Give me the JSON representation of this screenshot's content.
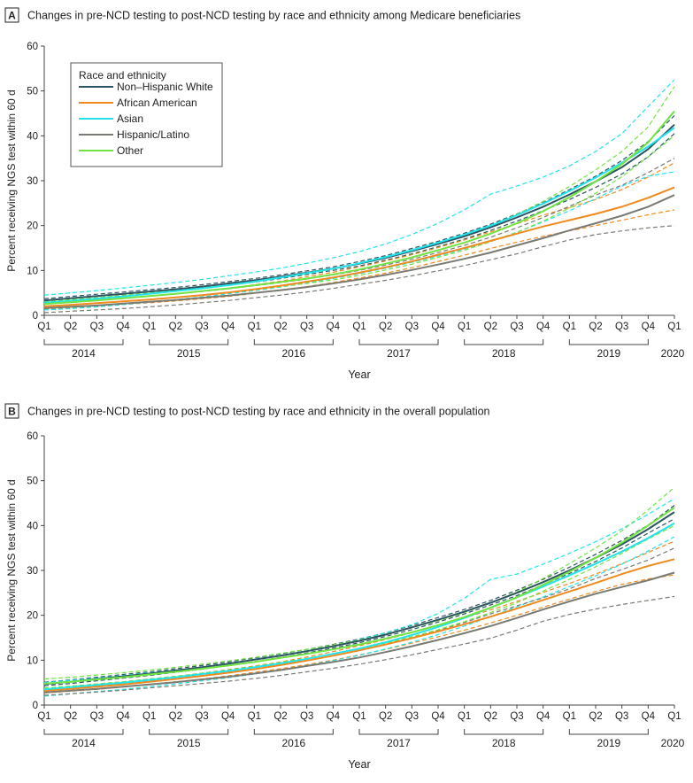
{
  "colors": {
    "Non-Hispanic White": "#2d5560",
    "African American": "#ef8a1f",
    "Asian": "#22e3ea",
    "Hispanic/Latino": "#7a7a73",
    "Other": "#71e343",
    "axis": "#444444",
    "text": "#222222"
  },
  "chart_data": [
    {
      "type": "line",
      "panel_label": "A",
      "title": "Changes in pre-NCD testing to post-NCD testing by race and ethnicity among Medicare beneficiaries",
      "xlabel": "Year",
      "ylabel": "Percent receiving NGS test within 60 d",
      "ylim": [
        0,
        60
      ],
      "yticks": [
        0,
        10,
        20,
        30,
        40,
        50,
        60
      ],
      "x_quarters": [
        "Q1",
        "Q2",
        "Q3",
        "Q4",
        "Q1",
        "Q2",
        "Q3",
        "Q4",
        "Q1",
        "Q2",
        "Q3",
        "Q4",
        "Q1",
        "Q2",
        "Q3",
        "Q4",
        "Q1",
        "Q2",
        "Q3",
        "Q4",
        "Q1",
        "Q2",
        "Q3",
        "Q4",
        "Q1"
      ],
      "year_groups": [
        "2014",
        "2015",
        "2016",
        "2017",
        "2018",
        "2019",
        "2020"
      ],
      "legend": {
        "title": "Race and ethnicity",
        "position": "top-left"
      },
      "series": [
        {
          "name": "Non–Hispanic White",
          "key": "Non-Hispanic White",
          "values": [
            3.3,
            3.8,
            4.3,
            4.8,
            5.3,
            5.8,
            6.4,
            7.1,
            7.8,
            8.6,
            9.5,
            10.4,
            11.5,
            12.8,
            14.3,
            15.9,
            17.6,
            19.6,
            21.8,
            24.2,
            26.9,
            29.8,
            33.0,
            37.0,
            42.5
          ],
          "lower": [
            2.9,
            3.4,
            3.9,
            4.4,
            4.9,
            5.4,
            6.0,
            6.7,
            7.4,
            8.2,
            9.1,
            10.0,
            11.0,
            12.3,
            13.7,
            15.3,
            17.0,
            18.9,
            21.0,
            23.3,
            25.8,
            28.5,
            31.5,
            35.3,
            40.5
          ],
          "upper": [
            3.7,
            4.2,
            4.7,
            5.2,
            5.7,
            6.2,
            6.8,
            7.5,
            8.2,
            9.0,
            9.9,
            10.8,
            12.0,
            13.3,
            14.9,
            16.5,
            18.3,
            20.3,
            22.6,
            25.1,
            28.0,
            31.0,
            34.5,
            38.7,
            44.5
          ]
        },
        {
          "name": "African American",
          "key": "African American",
          "values": [
            2.0,
            2.3,
            2.7,
            3.1,
            3.5,
            4.0,
            4.5,
            5.1,
            5.8,
            6.6,
            7.5,
            8.4,
            9.5,
            10.7,
            12.0,
            13.5,
            15.0,
            16.6,
            18.2,
            19.8,
            21.2,
            22.6,
            24.2,
            26.2,
            28.5
          ],
          "lower": [
            1.4,
            1.6,
            2.0,
            2.4,
            2.8,
            3.2,
            3.7,
            4.2,
            4.9,
            5.6,
            6.4,
            7.3,
            8.3,
            9.4,
            10.6,
            12.0,
            13.4,
            14.9,
            16.3,
            17.6,
            18.8,
            20.0,
            21.2,
            22.4,
            23.5
          ],
          "upper": [
            2.6,
            3.0,
            3.4,
            3.8,
            4.3,
            4.8,
            5.4,
            6.0,
            6.8,
            7.6,
            8.6,
            9.6,
            10.8,
            12.1,
            13.5,
            15.1,
            16.8,
            18.6,
            20.4,
            22.3,
            24.0,
            25.8,
            28.0,
            30.8,
            34.0
          ]
        },
        {
          "name": "Asian",
          "key": "Asian",
          "values": [
            2.8,
            3.2,
            3.7,
            4.2,
            4.8,
            5.4,
            6.0,
            6.7,
            7.5,
            8.4,
            9.4,
            10.4,
            11.6,
            13.0,
            14.5,
            16.2,
            18.0,
            20.0,
            22.3,
            24.9,
            27.7,
            30.7,
            34.0,
            37.6,
            41.8
          ],
          "lower": [
            1.2,
            1.5,
            1.9,
            2.4,
            2.9,
            3.5,
            4.1,
            4.8,
            5.5,
            6.3,
            7.2,
            8.2,
            9.3,
            10.5,
            11.8,
            13.2,
            14.8,
            16.5,
            18.5,
            20.8,
            23.3,
            26.0,
            28.8,
            31.0,
            32.0
          ],
          "upper": [
            4.5,
            5.0,
            5.5,
            6.1,
            6.7,
            7.3,
            8.0,
            8.8,
            9.6,
            10.5,
            11.6,
            12.8,
            14.2,
            15.9,
            18.0,
            20.5,
            23.5,
            27.0,
            28.8,
            30.8,
            33.3,
            36.5,
            40.5,
            46.5,
            52.5
          ]
        },
        {
          "name": "Hispanic/Latino",
          "key": "Hispanic/Latino",
          "values": [
            1.6,
            1.9,
            2.2,
            2.6,
            3.0,
            3.4,
            3.9,
            4.4,
            5.0,
            5.6,
            6.3,
            7.1,
            8.0,
            9.0,
            10.1,
            11.3,
            12.6,
            14.0,
            15.6,
            17.2,
            18.9,
            20.5,
            22.2,
            24.2,
            26.8
          ],
          "lower": [
            0.6,
            0.9,
            1.2,
            1.5,
            1.9,
            2.3,
            2.8,
            3.3,
            3.9,
            4.5,
            5.2,
            6.0,
            6.9,
            7.8,
            8.8,
            9.9,
            11.1,
            12.4,
            13.7,
            15.3,
            16.8,
            18.0,
            18.8,
            19.5,
            20.0
          ],
          "upper": [
            2.6,
            3.0,
            3.4,
            3.8,
            4.3,
            4.8,
            5.3,
            5.9,
            6.6,
            7.3,
            8.1,
            9.0,
            10.0,
            11.2,
            12.5,
            14.0,
            15.6,
            17.4,
            19.5,
            21.8,
            24.3,
            26.8,
            29.0,
            31.8,
            35.0
          ]
        },
        {
          "name": "Other",
          "key": "Other",
          "values": [
            2.5,
            2.9,
            3.3,
            3.8,
            4.3,
            4.8,
            5.4,
            6.0,
            6.7,
            7.4,
            8.2,
            9.1,
            10.2,
            11.5,
            12.9,
            14.5,
            16.2,
            18.2,
            20.5,
            23.2,
            26.3,
            29.8,
            33.7,
            38.5,
            45.5
          ],
          "lower": [
            2.0,
            2.3,
            2.7,
            3.1,
            3.5,
            4.0,
            4.5,
            5.1,
            5.7,
            6.4,
            7.1,
            7.9,
            8.9,
            10.1,
            11.4,
            12.9,
            14.5,
            16.4,
            18.5,
            21.0,
            23.9,
            27.2,
            30.9,
            35.3,
            40.0
          ],
          "upper": [
            3.0,
            3.5,
            3.9,
            4.5,
            5.1,
            5.6,
            6.3,
            6.9,
            7.7,
            8.4,
            9.3,
            10.3,
            11.5,
            12.9,
            14.4,
            16.1,
            17.9,
            20.0,
            22.5,
            25.4,
            28.7,
            32.4,
            36.5,
            42.0,
            51.0
          ]
        }
      ]
    },
    {
      "type": "line",
      "panel_label": "B",
      "title": "Changes in pre-NCD testing to post-NCD testing by race and ethnicity in the overall population",
      "xlabel": "Year",
      "ylabel": "Percent receiving NGS test within 60 d",
      "ylim": [
        0,
        60
      ],
      "yticks": [
        0,
        10,
        20,
        30,
        40,
        50,
        60
      ],
      "x_quarters": [
        "Q1",
        "Q2",
        "Q3",
        "Q4",
        "Q1",
        "Q2",
        "Q3",
        "Q4",
        "Q1",
        "Q2",
        "Q3",
        "Q4",
        "Q1",
        "Q2",
        "Q3",
        "Q4",
        "Q1",
        "Q2",
        "Q3",
        "Q4",
        "Q1",
        "Q2",
        "Q3",
        "Q4",
        "Q1"
      ],
      "year_groups": [
        "2014",
        "2015",
        "2016",
        "2017",
        "2018",
        "2019",
        "2020"
      ],
      "series": [
        {
          "name": "Non–Hispanic White",
          "key": "Non-Hispanic White",
          "values": [
            4.7,
            5.2,
            5.8,
            6.4,
            7.0,
            7.7,
            8.4,
            9.2,
            10.1,
            11.0,
            12.0,
            13.1,
            14.3,
            15.7,
            17.3,
            19.0,
            20.8,
            22.8,
            25.0,
            27.4,
            30.0,
            32.8,
            35.8,
            39.2,
            43.0
          ],
          "lower": [
            4.3,
            4.8,
            5.4,
            6.0,
            6.6,
            7.3,
            8.0,
            8.8,
            9.7,
            10.6,
            11.6,
            12.7,
            13.9,
            15.3,
            16.8,
            18.5,
            20.3,
            22.3,
            24.4,
            26.8,
            29.3,
            32.0,
            35.0,
            38.3,
            41.5
          ],
          "upper": [
            5.1,
            5.6,
            6.2,
            6.8,
            7.4,
            8.1,
            8.8,
            9.6,
            10.5,
            11.4,
            12.4,
            13.5,
            14.7,
            16.1,
            17.7,
            19.5,
            21.3,
            23.3,
            25.6,
            28.0,
            30.7,
            33.6,
            36.7,
            40.1,
            44.5
          ]
        },
        {
          "name": "African American",
          "key": "African American",
          "values": [
            3.2,
            3.6,
            4.1,
            4.6,
            5.2,
            5.8,
            6.5,
            7.2,
            8.0,
            8.9,
            9.9,
            11.0,
            12.2,
            13.5,
            14.9,
            16.4,
            18.0,
            19.7,
            21.5,
            23.4,
            25.3,
            27.2,
            29.2,
            31.0,
            32.5
          ],
          "lower": [
            2.7,
            3.1,
            3.5,
            4.0,
            4.6,
            5.2,
            5.8,
            6.5,
            7.3,
            8.1,
            9.0,
            10.0,
            11.2,
            12.4,
            13.8,
            15.2,
            16.7,
            18.3,
            20.0,
            21.8,
            23.6,
            25.3,
            26.9,
            28.1,
            29.0
          ],
          "upper": [
            3.7,
            4.2,
            4.7,
            5.2,
            5.8,
            6.4,
            7.1,
            7.9,
            8.7,
            9.6,
            10.7,
            11.9,
            13.2,
            14.6,
            16.1,
            17.7,
            19.4,
            21.2,
            23.1,
            25.1,
            27.1,
            29.2,
            31.5,
            34.0,
            36.5
          ]
        },
        {
          "name": "Asian",
          "key": "Asian",
          "values": [
            3.5,
            4.0,
            4.5,
            5.0,
            5.6,
            6.2,
            6.9,
            7.6,
            8.4,
            9.3,
            10.3,
            11.4,
            12.6,
            14.0,
            15.6,
            17.4,
            19.4,
            21.7,
            24.0,
            26.4,
            28.9,
            31.5,
            34.2,
            37.2,
            40.5
          ],
          "lower": [
            2.0,
            2.5,
            3.0,
            3.5,
            4.1,
            4.7,
            5.4,
            6.1,
            6.9,
            7.8,
            8.8,
            9.9,
            11.1,
            12.5,
            14.0,
            15.7,
            17.6,
            19.7,
            21.9,
            24.1,
            26.4,
            28.8,
            31.4,
            34.3,
            37.5
          ],
          "upper": [
            5.0,
            5.5,
            6.0,
            6.6,
            7.2,
            7.8,
            8.5,
            9.3,
            10.2,
            11.1,
            12.1,
            13.3,
            14.6,
            16.1,
            17.9,
            20.4,
            23.8,
            28.0,
            29.2,
            31.4,
            33.8,
            36.4,
            39.3,
            42.5,
            46.0
          ]
        },
        {
          "name": "Hispanic/Latino",
          "key": "Hispanic/Latino",
          "values": [
            2.8,
            3.2,
            3.6,
            4.1,
            4.6,
            5.1,
            5.7,
            6.3,
            7.0,
            7.8,
            8.7,
            9.6,
            10.6,
            11.8,
            13.1,
            14.5,
            16.0,
            17.6,
            19.4,
            21.3,
            23.1,
            24.8,
            26.3,
            27.8,
            29.5
          ],
          "lower": [
            2.2,
            2.5,
            2.9,
            3.3,
            3.8,
            4.3,
            4.8,
            5.3,
            5.9,
            6.6,
            7.4,
            8.2,
            9.1,
            10.1,
            11.2,
            12.4,
            13.6,
            14.9,
            16.7,
            18.7,
            20.2,
            21.4,
            22.4,
            23.3,
            24.2
          ],
          "upper": [
            3.4,
            3.9,
            4.3,
            4.9,
            5.4,
            6.0,
            6.6,
            7.3,
            8.1,
            9.0,
            10.0,
            11.0,
            12.1,
            13.5,
            15.0,
            16.6,
            18.4,
            20.3,
            22.1,
            23.9,
            25.9,
            28.2,
            30.2,
            32.3,
            35.0
          ]
        },
        {
          "name": "Other",
          "key": "Other",
          "values": [
            4.8,
            5.2,
            5.7,
            6.2,
            6.8,
            7.4,
            8.1,
            8.8,
            9.6,
            10.5,
            11.4,
            12.4,
            13.5,
            14.8,
            16.2,
            17.8,
            19.6,
            21.7,
            24.0,
            26.8,
            29.7,
            32.8,
            36.2,
            40.0,
            44.0
          ],
          "lower": [
            3.8,
            4.2,
            4.7,
            5.2,
            5.8,
            6.4,
            7.1,
            7.8,
            8.6,
            9.5,
            10.4,
            11.4,
            12.5,
            13.8,
            15.2,
            16.8,
            18.6,
            20.6,
            22.8,
            25.4,
            28.0,
            30.8,
            33.8,
            37.0,
            40.0
          ],
          "upper": [
            5.8,
            6.2,
            6.7,
            7.2,
            7.8,
            8.4,
            9.1,
            9.8,
            10.6,
            11.5,
            12.4,
            13.4,
            14.5,
            15.8,
            17.2,
            18.8,
            20.6,
            22.8,
            25.2,
            28.2,
            31.5,
            35.0,
            38.8,
            43.5,
            48.5
          ]
        }
      ]
    }
  ]
}
